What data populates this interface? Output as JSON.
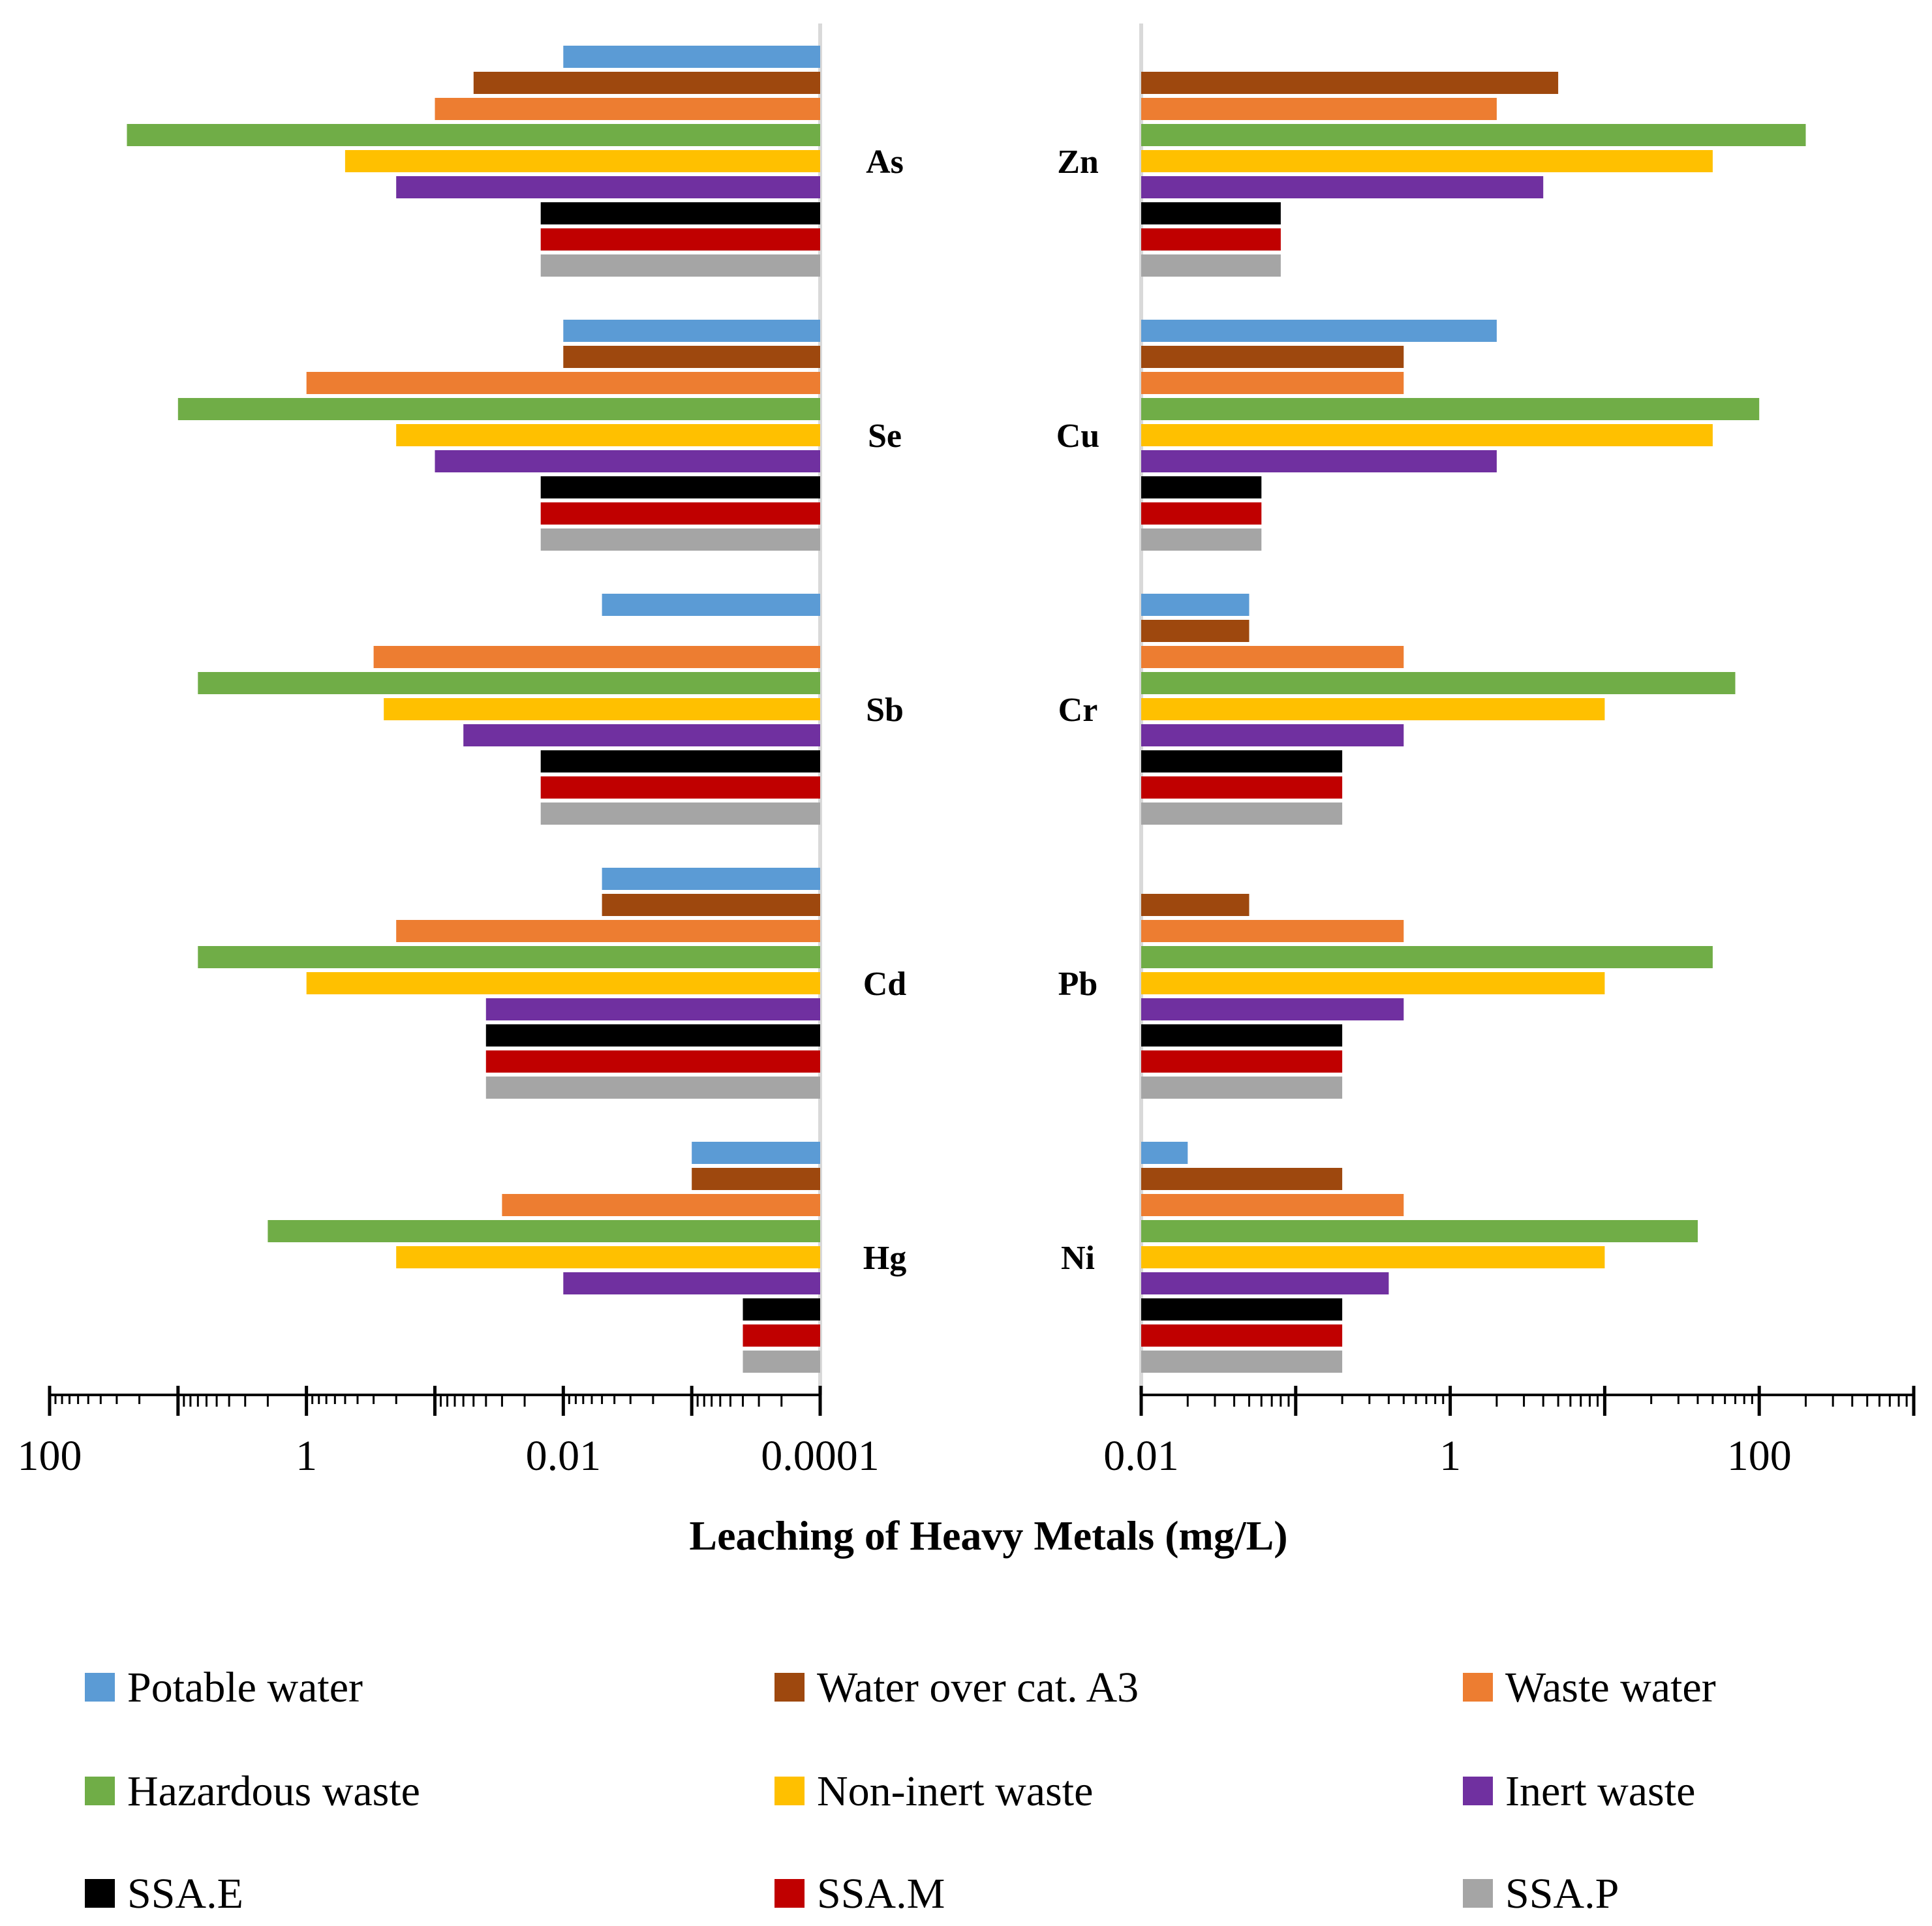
{
  "chart_data": {
    "type": "bar",
    "orientation": "horizontal",
    "xscale": "log",
    "xlabel": "Leaching of Heavy Metals (mg/L)",
    "series": [
      {
        "name": "Potable water",
        "color": "#5B9BD5"
      },
      {
        "name": "Water over cat. A3",
        "color": "#9E480E"
      },
      {
        "name": "Waste water",
        "color": "#ED7D31"
      },
      {
        "name": "Hazardous waste",
        "color": "#70AD47"
      },
      {
        "name": "Non-inert waste",
        "color": "#FFC000"
      },
      {
        "name": "Inert waste",
        "color": "#7030A0"
      },
      {
        "name": "SSA.E",
        "color": "#000000"
      },
      {
        "name": "SSA.M",
        "color": "#C00000"
      },
      {
        "name": "SSA.P",
        "color": "#A5A5A5"
      }
    ],
    "panels": [
      {
        "side": "left",
        "reversed": true,
        "xlim": [
          0.0001,
          100
        ],
        "tick_labels": [
          {
            "label": "100",
            "value": 100
          },
          {
            "label": "1",
            "value": 1
          },
          {
            "label": "0.01",
            "value": 0.01
          },
          {
            "label": "0.0001",
            "value": 0.0001
          }
        ],
        "groups": [
          {
            "metal": "As",
            "values": [
              0.01,
              0.05,
              0.1,
              25,
              0.5,
              0.2,
              0.015,
              0.015,
              0.015
            ]
          },
          {
            "metal": "Se",
            "values": [
              0.01,
              0.01,
              1,
              10,
              0.2,
              0.1,
              0.015,
              0.015,
              0.015
            ]
          },
          {
            "metal": "Sb",
            "values": [
              0.005,
              null,
              0.3,
              7,
              0.25,
              0.06,
              0.015,
              0.015,
              0.015
            ]
          },
          {
            "metal": "Cd",
            "values": [
              0.005,
              0.005,
              0.2,
              7,
              1,
              0.04,
              0.04,
              0.04,
              0.04
            ]
          },
          {
            "metal": "Hg",
            "values": [
              0.001,
              0.001,
              0.03,
              2,
              0.2,
              0.01,
              0.0004,
              0.0004,
              0.0004
            ]
          }
        ]
      },
      {
        "side": "right",
        "reversed": false,
        "xlim": [
          0.01,
          1000
        ],
        "tick_labels": [
          {
            "label": "0.01",
            "value": 0.01
          },
          {
            "label": "1",
            "value": 1
          },
          {
            "label": "100",
            "value": 100
          }
        ],
        "groups": [
          {
            "metal": "Zn",
            "values": [
              null,
              5,
              2,
              200,
              50,
              4,
              0.08,
              0.08,
              0.08
            ]
          },
          {
            "metal": "Cu",
            "values": [
              2,
              0.5,
              0.5,
              100,
              50,
              2,
              0.06,
              0.06,
              0.06
            ]
          },
          {
            "metal": "Cr",
            "values": [
              0.05,
              0.05,
              0.5,
              70,
              10,
              0.5,
              0.2,
              0.2,
              0.2
            ]
          },
          {
            "metal": "Pb",
            "values": [
              null,
              0.05,
              0.5,
              50,
              10,
              0.5,
              0.2,
              0.2,
              0.2
            ]
          },
          {
            "metal": "Ni",
            "values": [
              0.02,
              0.2,
              0.5,
              40,
              10,
              0.4,
              0.2,
              0.2,
              0.2
            ]
          }
        ]
      }
    ]
  }
}
